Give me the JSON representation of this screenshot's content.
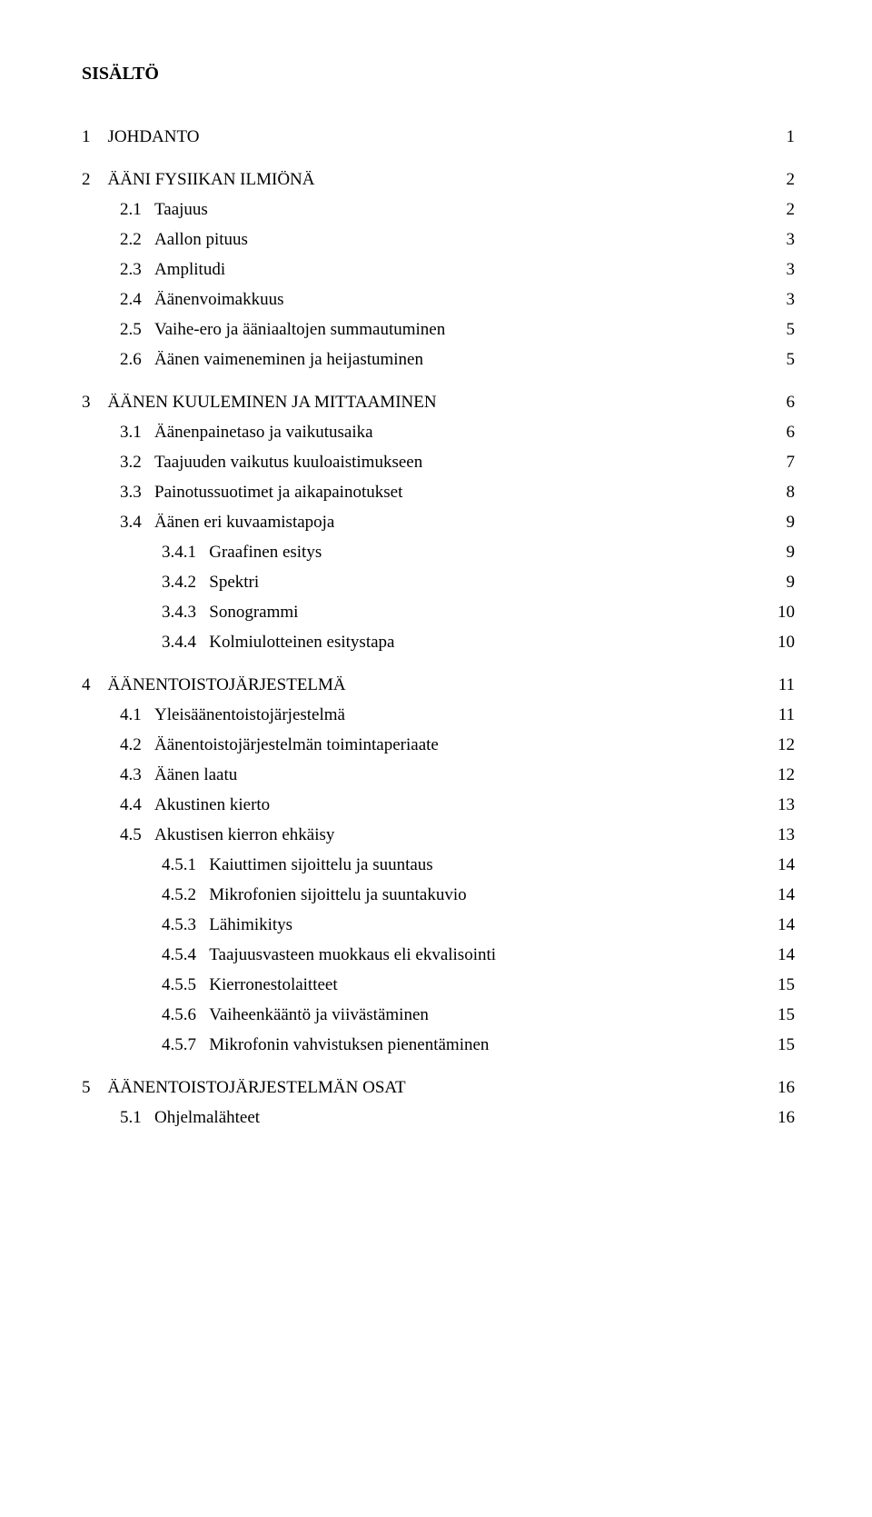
{
  "heading": "SISÄLTÖ",
  "font": {
    "family": "Times New Roman",
    "body_size_pt": 14
  },
  "colors": {
    "text": "#000000",
    "background": "#ffffff"
  },
  "toc": [
    {
      "depth": 0,
      "num": "1",
      "title": "JOHDANTO",
      "page": "1"
    },
    {
      "depth": 0,
      "num": "2",
      "title": "ÄÄNI FYSIIKAN ILMIÖNÄ",
      "page": "2"
    },
    {
      "depth": 1,
      "num": "2.1",
      "title": "Taajuus",
      "page": "2"
    },
    {
      "depth": 1,
      "num": "2.2",
      "title": "Aallon pituus",
      "page": "3"
    },
    {
      "depth": 1,
      "num": "2.3",
      "title": "Amplitudi",
      "page": "3"
    },
    {
      "depth": 1,
      "num": "2.4",
      "title": "Äänenvoimakkuus",
      "page": "3"
    },
    {
      "depth": 1,
      "num": "2.5",
      "title": "Vaihe-ero ja ääniaaltojen summautuminen",
      "page": "5"
    },
    {
      "depth": 1,
      "num": "2.6",
      "title": "Äänen vaimeneminen ja heijastuminen",
      "page": "5"
    },
    {
      "depth": 0,
      "num": "3",
      "title": "ÄÄNEN KUULEMINEN JA MITTAAMINEN",
      "page": "6"
    },
    {
      "depth": 1,
      "num": "3.1",
      "title": "Äänenpainetaso ja vaikutusaika",
      "page": "6"
    },
    {
      "depth": 1,
      "num": "3.2",
      "title": "Taajuuden vaikutus kuuloaistimukseen",
      "page": "7"
    },
    {
      "depth": 1,
      "num": "3.3",
      "title": "Painotussuotimet ja aikapainotukset",
      "page": "8"
    },
    {
      "depth": 1,
      "num": "3.4",
      "title": "Äänen eri kuvaamistapoja",
      "page": "9"
    },
    {
      "depth": 2,
      "num": "3.4.1",
      "title": "Graafinen esitys",
      "page": "9"
    },
    {
      "depth": 2,
      "num": "3.4.2",
      "title": "Spektri",
      "page": "9"
    },
    {
      "depth": 2,
      "num": "3.4.3",
      "title": "Sonogrammi",
      "page": "10"
    },
    {
      "depth": 2,
      "num": "3.4.4",
      "title": "Kolmiulotteinen esitystapa",
      "page": "10"
    },
    {
      "depth": 0,
      "num": "4",
      "title": "ÄÄNENTOISTOJÄRJESTELMÄ",
      "page": "11"
    },
    {
      "depth": 1,
      "num": "4.1",
      "title": "Yleisäänentoistojärjestelmä",
      "page": "11"
    },
    {
      "depth": 1,
      "num": "4.2",
      "title": "Äänentoistojärjestelmän toimintaperiaate",
      "page": "12"
    },
    {
      "depth": 1,
      "num": "4.3",
      "title": "Äänen laatu",
      "page": "12"
    },
    {
      "depth": 1,
      "num": "4.4",
      "title": "Akustinen kierto",
      "page": "13"
    },
    {
      "depth": 1,
      "num": "4.5",
      "title": "Akustisen kierron ehkäisy",
      "page": "13"
    },
    {
      "depth": 2,
      "num": "4.5.1",
      "title": "Kaiuttimen sijoittelu ja suuntaus",
      "page": "14"
    },
    {
      "depth": 2,
      "num": "4.5.2",
      "title": "Mikrofonien sijoittelu ja suuntakuvio",
      "page": "14"
    },
    {
      "depth": 2,
      "num": "4.5.3",
      "title": "Lähimikitys",
      "page": "14"
    },
    {
      "depth": 2,
      "num": "4.5.4",
      "title": "Taajuusvasteen muokkaus eli ekvalisointi",
      "page": "14"
    },
    {
      "depth": 2,
      "num": "4.5.5",
      "title": "Kierronestolaitteet",
      "page": "15"
    },
    {
      "depth": 2,
      "num": "4.5.6",
      "title": "Vaiheenkääntö ja viivästäminen",
      "page": "15"
    },
    {
      "depth": 2,
      "num": "4.5.7",
      "title": "Mikrofonin vahvistuksen pienentäminen",
      "page": "15"
    },
    {
      "depth": 0,
      "num": "5",
      "title": "ÄÄNENTOISTOJÄRJESTELMÄN OSAT",
      "page": "16"
    },
    {
      "depth": 1,
      "num": "5.1",
      "title": "Ohjelmalähteet",
      "page": "16"
    }
  ]
}
